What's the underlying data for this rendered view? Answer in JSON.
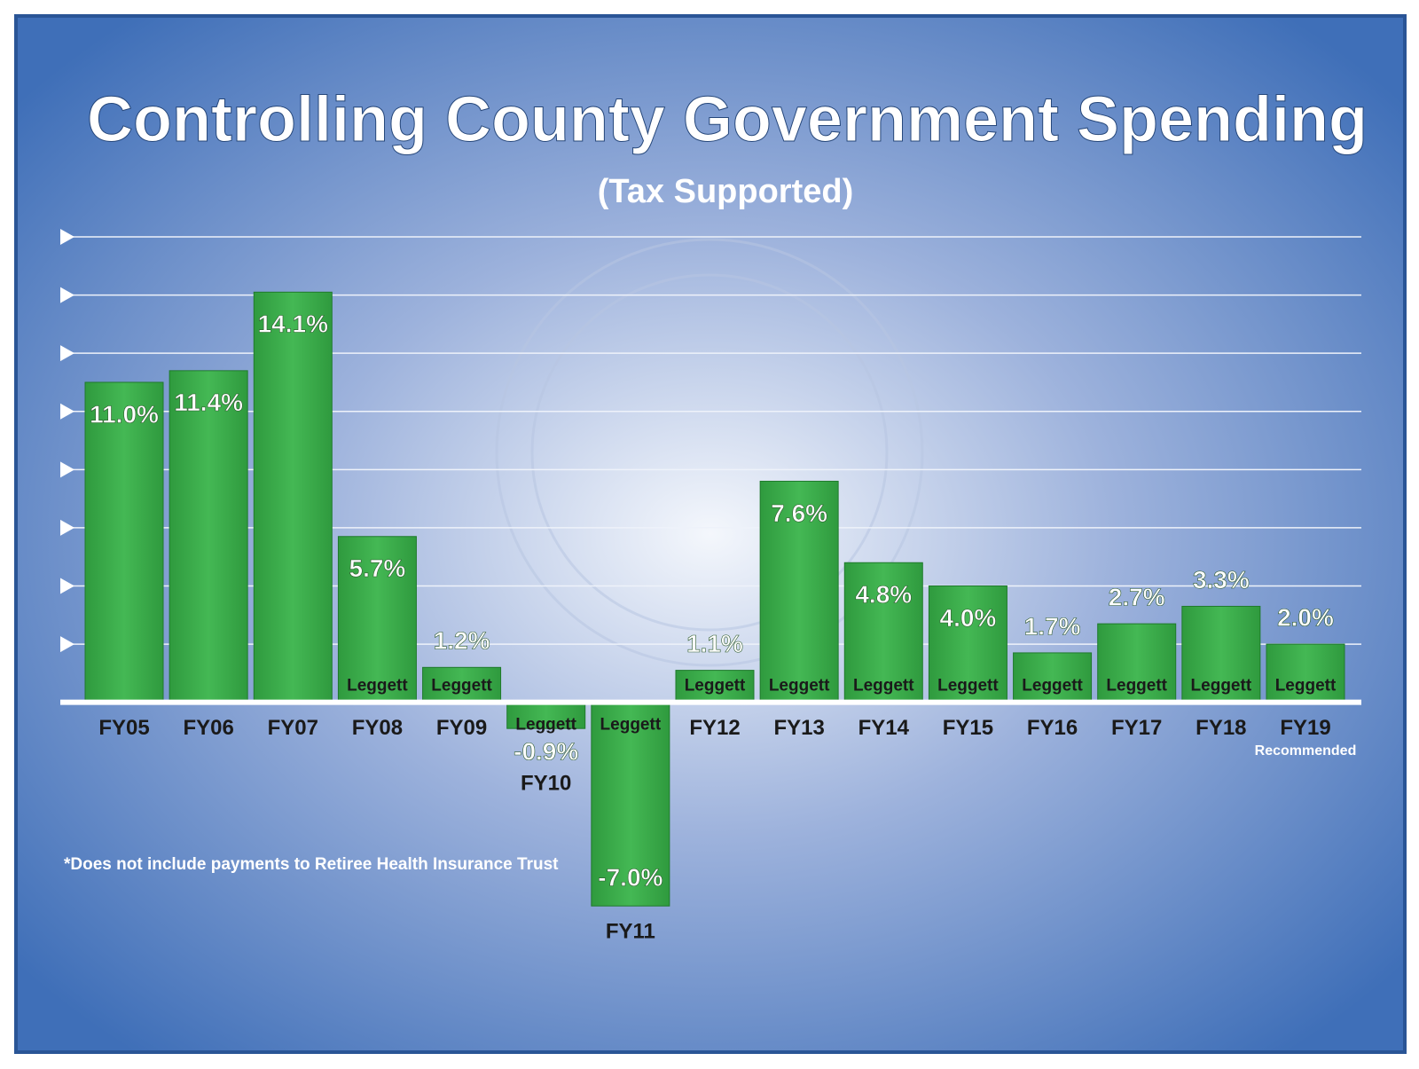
{
  "chart_data": {
    "type": "bar",
    "title": "Controlling County Government Spending",
    "subtitle": "(Tax Supported)",
    "categories": [
      "FY05",
      "FY06",
      "FY07",
      "FY08",
      "FY09",
      "FY10",
      "FY11",
      "FY12",
      "FY13",
      "FY14",
      "FY15",
      "FY16",
      "FY17",
      "FY18",
      "FY19"
    ],
    "category_sublabels": [
      null,
      null,
      null,
      null,
      null,
      null,
      null,
      null,
      null,
      null,
      null,
      null,
      null,
      null,
      "Recommended"
    ],
    "values": [
      11.0,
      11.4,
      14.1,
      5.7,
      1.2,
      -0.9,
      -7.0,
      1.1,
      7.6,
      4.8,
      4.0,
      1.7,
      2.7,
      3.3,
      2.0
    ],
    "value_labels": [
      "11.0%",
      "11.4%",
      "14.1%",
      "5.7%",
      "1.2%",
      "-0.9%",
      "-7.0%",
      "1.1%",
      "7.6%",
      "4.8%",
      "4.0%",
      "1.7%",
      "2.7%",
      "3.3%",
      "2.0%"
    ],
    "bar_annotations": [
      null,
      null,
      null,
      "Leggett",
      "Leggett",
      "Leggett",
      "Leggett",
      "Leggett",
      "Leggett",
      "Leggett",
      "Leggett",
      "Leggett",
      "Leggett",
      "Leggett",
      "Leggett"
    ],
    "color": "#3cb44b",
    "ylim": [
      -8,
      16
    ],
    "yticks": [
      0,
      2,
      4,
      6,
      8,
      10,
      12,
      14,
      16
    ],
    "grid": true,
    "footnote": "*Does not include payments to Retiree Health Insurance Trust"
  }
}
